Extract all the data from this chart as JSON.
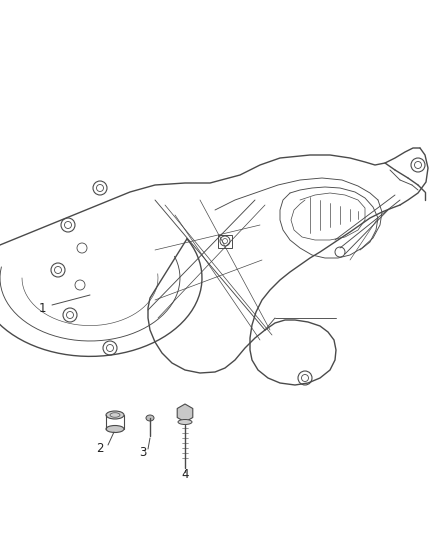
{
  "background_color": "#ffffff",
  "line_color": "#4a4a4a",
  "label_color": "#222222",
  "fig_width": 4.38,
  "fig_height": 5.33,
  "dpi": 100,
  "label_fontsize": 8.5
}
